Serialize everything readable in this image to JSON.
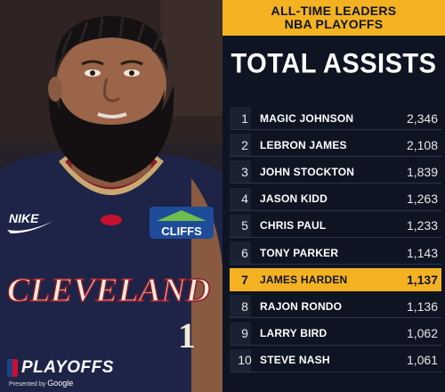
{
  "header": {
    "line1": "ALL-TIME LEADERS",
    "line2": "NBA PLAYOFFS"
  },
  "title": "TOTAL ASSISTS",
  "leaders": [
    {
      "rank": "1",
      "name": "MAGIC JOHNSON",
      "value": "2,346"
    },
    {
      "rank": "2",
      "name": "LEBRON JAMES",
      "value": "2,108"
    },
    {
      "rank": "3",
      "name": "JOHN STOCKTON",
      "value": "1,839"
    },
    {
      "rank": "4",
      "name": "JASON KIDD",
      "value": "1,263"
    },
    {
      "rank": "5",
      "name": "CHRIS PAUL",
      "value": "1,233"
    },
    {
      "rank": "6",
      "name": "TONY PARKER",
      "value": "1,143"
    },
    {
      "rank": "7",
      "name": "JAMES HARDEN",
      "value": "1,137"
    },
    {
      "rank": "8",
      "name": "RAJON RONDO",
      "value": "1,136"
    },
    {
      "rank": "9",
      "name": "LARRY BIRD",
      "value": "1,062"
    },
    {
      "rank": "10",
      "name": "STEVE NASH",
      "value": "1,061"
    }
  ],
  "highlighted_rank": "7",
  "branding": {
    "playoffs": "PLAYOFFS",
    "presented_by": "Presented by",
    "sponsor": "Google"
  },
  "jersey": {
    "team_text": "CLEVELAND",
    "number": "1",
    "brand": "NIKE",
    "patch": "CLIFFS"
  },
  "colors": {
    "accent": "#f4b223",
    "panel": "#0e1422",
    "jersey": "#1d2447"
  }
}
